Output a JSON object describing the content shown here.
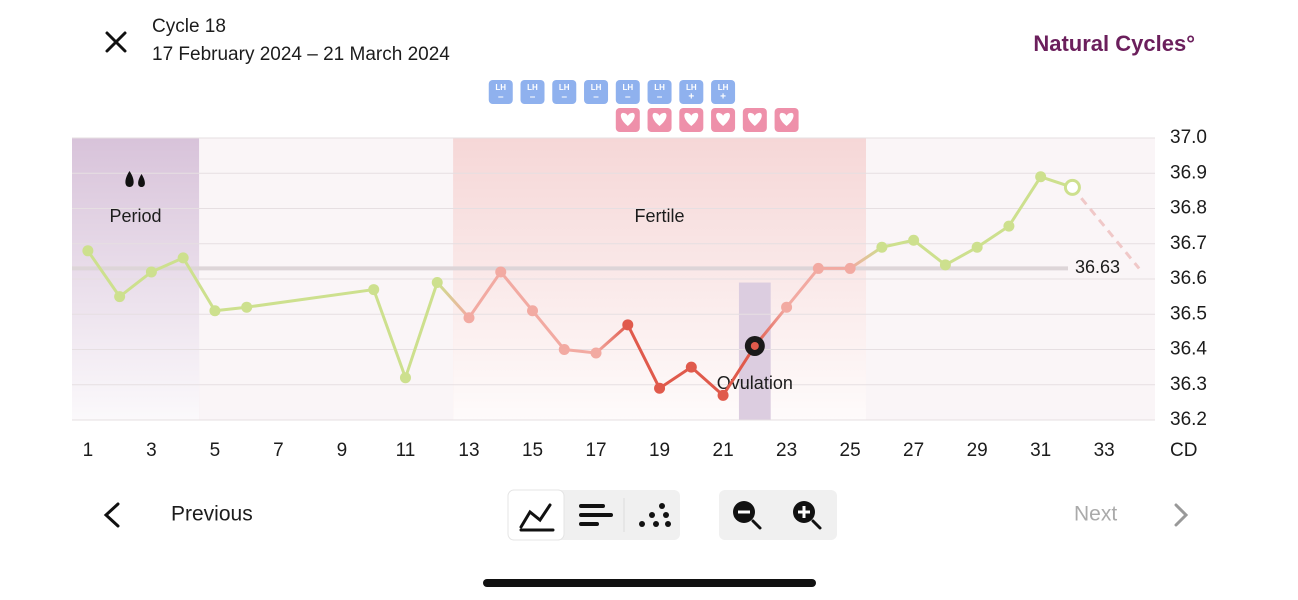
{
  "header": {
    "title": "Cycle 18",
    "subtitle": "17 February 2024 – 21 March 2024",
    "brand": "Natural Cycles°"
  },
  "chart_data": {
    "type": "line",
    "x": [
      1,
      2,
      3,
      4,
      5,
      6,
      10,
      11,
      12,
      13,
      14,
      15,
      16,
      17,
      18,
      19,
      20,
      21,
      22,
      23,
      24,
      25,
      26,
      27,
      28,
      29,
      30,
      31,
      32
    ],
    "values": [
      36.68,
      36.55,
      36.62,
      36.66,
      36.51,
      36.52,
      36.57,
      36.32,
      36.59,
      36.49,
      36.62,
      36.51,
      36.4,
      36.39,
      36.47,
      36.29,
      36.35,
      36.27,
      36.41,
      36.52,
      36.63,
      36.63,
      36.69,
      36.71,
      36.64,
      36.69,
      36.75,
      36.89,
      36.86
    ],
    "colors": [
      "#cde08e",
      "#cde08e",
      "#cde08e",
      "#cde08e",
      "#cde08e",
      "#cde08e",
      "#cde08e",
      "#cde08e",
      "#cde08e",
      "#f2aaa2",
      "#f2aaa2",
      "#f2aaa2",
      "#f2aaa2",
      "#f2aaa2",
      "#e05a4c",
      "#e05a4c",
      "#e05a4c",
      "#e05a4c",
      "#e05a4c",
      "#f2aaa2",
      "#f2aaa2",
      "#f2aaa2",
      "#cde08e",
      "#cde08e",
      "#cde08e",
      "#cde08e",
      "#cde08e",
      "#cde08e",
      "#cde08e"
    ],
    "current_day": 22,
    "forecast": {
      "x": 34.1,
      "y": 36.63
    },
    "xlim": [
      0.5,
      34.6
    ],
    "xticks": [
      1,
      3,
      5,
      7,
      9,
      11,
      13,
      15,
      17,
      19,
      21,
      23,
      25,
      27,
      29,
      31,
      33
    ],
    "x_label": "CD",
    "ylim": [
      36.2,
      37.0
    ],
    "yticks": [
      36.2,
      36.3,
      36.4,
      36.5,
      36.6,
      36.7,
      36.8,
      36.9,
      {
        "value": 37.0,
        "label": "37.0"
      }
    ],
    "grid": true,
    "coverline": 36.63,
    "zones": [
      {
        "label": "Period",
        "start": 0.5,
        "end": 4.5,
        "color": "#d8c3da"
      },
      {
        "label": "Fertile",
        "start": 12.5,
        "end": 25.5,
        "color": "#f6d7d7"
      },
      {
        "label": "Ovulation",
        "start": 21.5,
        "end": 22.5,
        "color": "#dccde0",
        "ymax": 36.59
      }
    ],
    "lh_tests": {
      "label": "LH",
      "days": [
        14,
        15,
        16,
        17,
        18,
        19,
        20,
        21
      ],
      "results": [
        "–",
        "–",
        "–",
        "–",
        "–",
        "–",
        "+",
        "+"
      ]
    },
    "intercourse_days": [
      18,
      19,
      20,
      21,
      22,
      23
    ]
  },
  "nav": {
    "previous": "Previous",
    "next": "Next"
  }
}
